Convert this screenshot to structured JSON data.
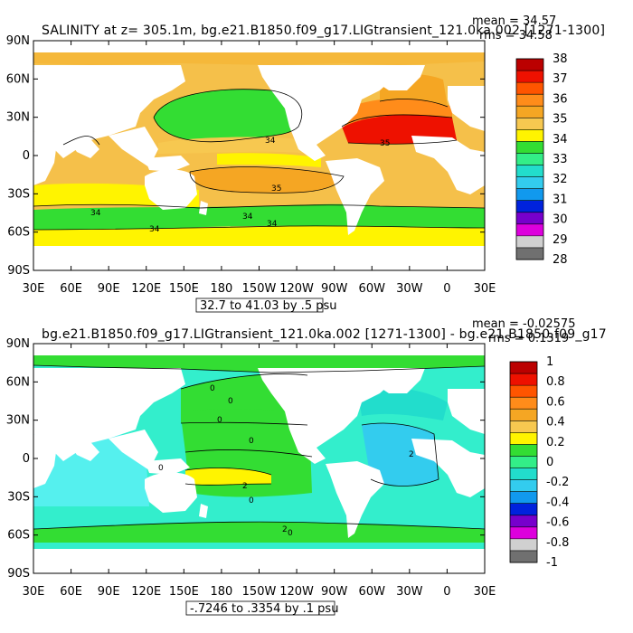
{
  "panels": [
    {
      "id": "top",
      "title": "SALINITY at z= 305.1m, bg.e21.B1850.f09_g17.LIGtransient_121.0ka.002 [1271-1300]",
      "mean_text": "mean = 34.57",
      "rms_text": "rms = 34.58",
      "range_text": "32.7 to 41.03 by .5 psu",
      "lat_labels": [
        "90N",
        "60N",
        "30N",
        "0",
        "30S",
        "60S",
        "90S"
      ],
      "lon_labels": [
        "30E",
        "60E",
        "90E",
        "120E",
        "150E",
        "180",
        "150W",
        "120W",
        "90W",
        "60W",
        "30W",
        "0",
        "30E"
      ],
      "colorbar_labels": [
        "38",
        "37",
        "36",
        "35",
        "34",
        "33",
        "32",
        "31",
        "30",
        "29",
        "28"
      ],
      "colorbar_colors": [
        "#bb0000",
        "#ee1100",
        "#ff5500",
        "#ff8c1a",
        "#f5a623",
        "#f7c850",
        "#fff400",
        "#33dd33",
        "#33ee88",
        "#22ddcc",
        "#33ccee",
        "#1199ee",
        "#0022dd",
        "#7700cc",
        "#dd00dd",
        "#d0d0d0",
        "#707070"
      ],
      "contour_labels": [
        "34",
        "35",
        "35",
        "34",
        "34",
        "34",
        "34"
      ],
      "ocean_color": "#f5c04a"
    },
    {
      "id": "bottom",
      "title": "bg.e21.B1850.f09_g17.LIGtransient_121.0ka.002 [1271-1300] - bg.e21.B1850.f09_g17",
      "mean_text": "mean = -0.02575",
      "rms_text": "rms = 0.1319",
      "range_text": "-.7246 to .3354 by .1 psu",
      "lat_labels": [
        "90N",
        "60N",
        "30N",
        "0",
        "30S",
        "60S",
        "90S"
      ],
      "lon_labels": [
        "30E",
        "60E",
        "90E",
        "120E",
        "150E",
        "180",
        "150W",
        "120W",
        "90W",
        "60W",
        "30W",
        "0",
        "30E"
      ],
      "colorbar_labels": [
        "1",
        "0.8",
        "0.6",
        "0.4",
        "0.2",
        "0",
        "-0.2",
        "-0.4",
        "-0.6",
        "-0.8",
        "-1"
      ],
      "colorbar_colors": [
        "#bb0000",
        "#ee1100",
        "#ff5500",
        "#ff8c1a",
        "#f5a623",
        "#f7c850",
        "#fff400",
        "#33dd33",
        "#33ee88",
        "#22ddcc",
        "#33ccee",
        "#1199ee",
        "#0022dd",
        "#7700cc",
        "#dd00dd",
        "#d0d0d0",
        "#707070"
      ],
      "contour_labels": [
        "0",
        "0",
        "0",
        "0",
        "0",
        "2",
        "0",
        "2",
        "2",
        "0"
      ],
      "ocean_color": "#33eecc"
    }
  ]
}
